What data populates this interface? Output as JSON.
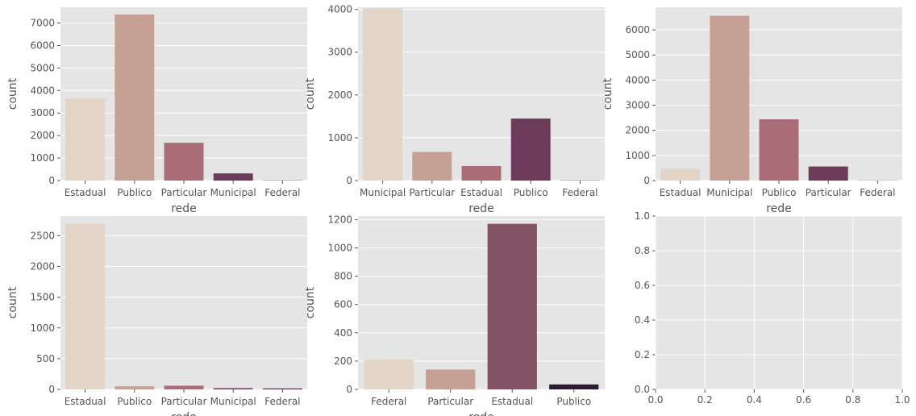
{
  "chart_data": [
    {
      "type": "bar",
      "categories": [
        "Estadual",
        "Publico",
        "Particular",
        "Municipal",
        "Federal"
      ],
      "values": [
        3650,
        7380,
        1680,
        320,
        10
      ],
      "colors": [
        "#e2d5c8",
        "#c6a095",
        "#a86d77",
        "#6e3c5b",
        "#5a3050"
      ],
      "xlabel": "rede",
      "ylabel": "count",
      "ylim": [
        0,
        7700
      ],
      "yticks": [
        0,
        1000,
        2000,
        3000,
        4000,
        5000,
        6000,
        7000
      ],
      "ytick_labels": [
        "0",
        "1000",
        "2000",
        "3000",
        "4000",
        "5000",
        "6000",
        "7000"
      ],
      "grid": true
    },
    {
      "type": "bar",
      "categories": [
        "Municipal",
        "Particular",
        "Estadual",
        "Publico",
        "Federal"
      ],
      "values": [
        4020,
        670,
        340,
        1450,
        5
      ],
      "colors": [
        "#e2d5c8",
        "#c6a095",
        "#a86d77",
        "#6e3c5b",
        "#4a2442"
      ],
      "xlabel": "rede",
      "ylabel": "count",
      "ylim": [
        0,
        4050
      ],
      "yticks": [
        0,
        1000,
        2000,
        3000,
        4000
      ],
      "ytick_labels": [
        "0",
        "1000",
        "2000",
        "3000",
        "4000"
      ],
      "grid": true
    },
    {
      "type": "bar",
      "categories": [
        "Estadual",
        "Municipal",
        "Publico",
        "Particular",
        "Federal"
      ],
      "values": [
        480,
        6560,
        2440,
        560,
        5
      ],
      "colors": [
        "#e2d5c8",
        "#c6a095",
        "#a86d77",
        "#6e3c5b",
        "#4a2442"
      ],
      "xlabel": "rede",
      "ylabel": "count",
      "ylim": [
        0,
        6900
      ],
      "yticks": [
        0,
        1000,
        2000,
        3000,
        4000,
        5000,
        6000
      ],
      "ytick_labels": [
        "0",
        "1000",
        "2000",
        "3000",
        "4000",
        "5000",
        "6000"
      ],
      "grid": true
    },
    {
      "type": "bar",
      "categories": [
        "Estadual",
        "Publico",
        "Particular",
        "Municipal",
        "Federal"
      ],
      "values": [
        2690,
        50,
        60,
        20,
        15
      ],
      "colors": [
        "#e2d5c8",
        "#c6a095",
        "#a86d77",
        "#6e3c5b",
        "#4a2442"
      ],
      "xlabel": "rede",
      "ylabel": "count",
      "ylim": [
        0,
        2820
      ],
      "yticks": [
        0,
        500,
        1000,
        1500,
        2000,
        2500
      ],
      "ytick_labels": [
        "0",
        "500",
        "1000",
        "1500",
        "2000",
        "2500"
      ],
      "grid": true
    },
    {
      "type": "bar",
      "categories": [
        "Federal",
        "Particular",
        "Estadual",
        "Publico"
      ],
      "values": [
        210,
        140,
        1170,
        35
      ],
      "colors": [
        "#e2d5c8",
        "#c6a095",
        "#845265",
        "#2e1a33"
      ],
      "xlabel": "rede",
      "ylabel": "count",
      "ylim": [
        0,
        1225
      ],
      "yticks": [
        0,
        200,
        400,
        600,
        800,
        1000,
        1200
      ],
      "ytick_labels": [
        "0",
        "200",
        "400",
        "600",
        "800",
        "1000",
        "1200"
      ],
      "grid": true
    },
    {
      "type": "empty",
      "xlim": [
        0,
        1
      ],
      "ylim": [
        0,
        1
      ],
      "xticks": [
        0,
        0.2,
        0.4,
        0.6,
        0.8,
        1.0
      ],
      "xtick_labels": [
        "0.0",
        "0.2",
        "0.4",
        "0.6",
        "0.8",
        "1.0"
      ],
      "yticks": [
        0,
        0.2,
        0.4,
        0.6,
        0.8,
        1.0
      ],
      "ytick_labels": [
        "0.0",
        "0.2",
        "0.4",
        "0.6",
        "0.8",
        "1.0"
      ],
      "grid": true
    }
  ]
}
